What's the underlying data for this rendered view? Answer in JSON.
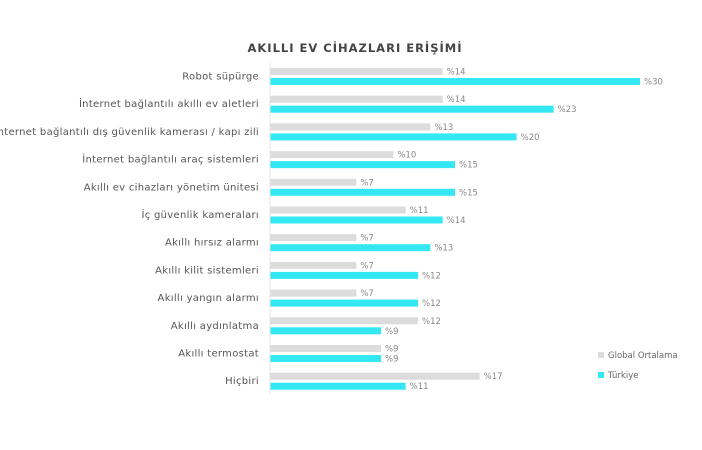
{
  "chart_data": {
    "type": "bar",
    "orientation": "horizontal",
    "title": "AKILLI EV CİHAZLARI ERİŞİMİ",
    "categories": [
      "Robot süpürge",
      "İnternet bağlantılı akıllı ev aletleri",
      "İnternet bağlantılı dış güvenlik kamerası / kapı zili",
      "İnternet bağlantılı araç sistemleri",
      "Akıllı ev cihazları yönetim ünitesi",
      "İç güvenlik kameraları",
      "Akıllı hırsız alarmı",
      "Akıllı kilit sistemleri",
      "Akıllı yangın alarmı",
      "Akıllı aydınlatma",
      "Akıllı termostat",
      "Hiçbiri"
    ],
    "series": [
      {
        "name": "Global Ortalama",
        "color": "#dcdcdc",
        "values": [
          14,
          14,
          13,
          10,
          7,
          11,
          7,
          7,
          7,
          12,
          9,
          17
        ]
      },
      {
        "name": "Türkiye",
        "color": "#33e8f2",
        "values": [
          30,
          23,
          20,
          15,
          15,
          14,
          13,
          12,
          12,
          9,
          9,
          11
        ]
      }
    ],
    "value_prefix": "%",
    "xlim": [
      0,
      30
    ],
    "grid": false,
    "legend_position": "bottom-right"
  }
}
